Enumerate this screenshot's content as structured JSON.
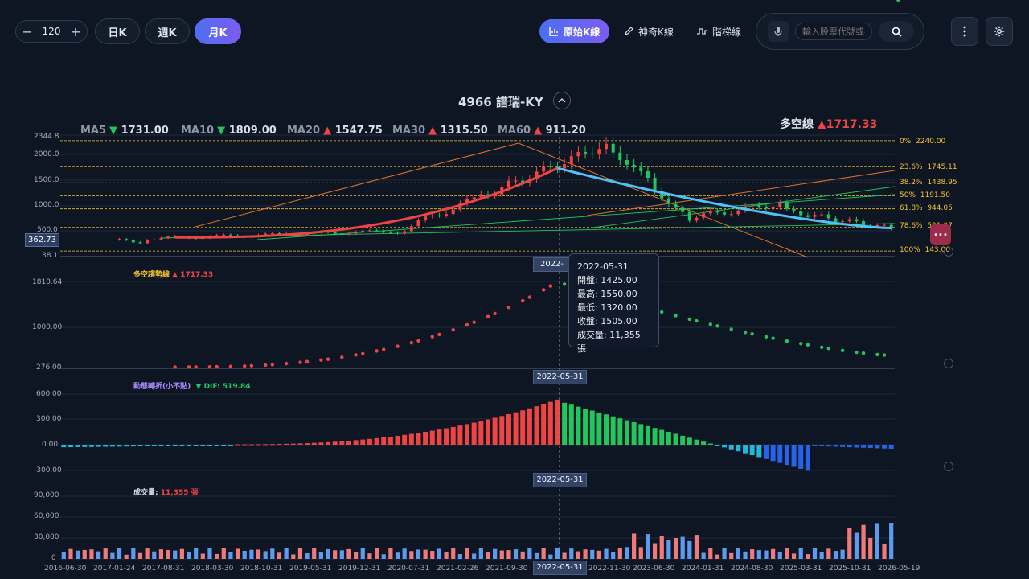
{
  "toolbar": {
    "period_count": "120",
    "minus": "−",
    "plus": "+",
    "periods": [
      "日K",
      "週K",
      "月K"
    ],
    "active_period": "月K",
    "modes": [
      "原始K線",
      "神奇K線",
      "階梯線"
    ],
    "active_mode": "原始K線",
    "search_placeholder": "輸入股票代號或名稱"
  },
  "stock": {
    "title": "4966 譜瑞-KY"
  },
  "ma_legend": [
    {
      "label": "MA5",
      "dir": "down",
      "value": "1731.00"
    },
    {
      "label": "MA10",
      "dir": "down",
      "value": "1809.00"
    },
    {
      "label": "MA20",
      "dir": "up",
      "value": "1547.75"
    },
    {
      "label": "MA30",
      "dir": "up",
      "value": "1315.50"
    },
    {
      "label": "MA60",
      "dir": "up",
      "value": "911.20"
    }
  ],
  "duokong": {
    "label": "多空線",
    "arrow": "▲",
    "value": "1717.33"
  },
  "price_axis": [
    "2344.8",
    "2000.0",
    "1500.0",
    "1000.0",
    "500.0",
    "38.1"
  ],
  "current_price_tag": "362.73",
  "fib_levels": [
    {
      "pct": "0%",
      "value": "2240.00"
    },
    {
      "pct": "23.6%",
      "value": "1745.11"
    },
    {
      "pct": "38.2%",
      "value": "1438.95"
    },
    {
      "pct": "50%",
      "value": "1191.50"
    },
    {
      "pct": "61.8%",
      "value": "944.05"
    },
    {
      "pct": "78.6%",
      "value": "591.07"
    },
    {
      "pct": "100%",
      "value": "143.00"
    }
  ],
  "trend_panel": {
    "label": "多空趨勢線",
    "arrow": "▲",
    "value": "1717.33",
    "axis": [
      "1810.64",
      "1000.00",
      "276.00"
    ]
  },
  "macd_panel": {
    "label": "動態轉折(小不點)",
    "arrow": "▼",
    "dif_label": "DIF:",
    "dif_value": "519.84",
    "axis": [
      "600.00",
      "300.00",
      "0.00",
      "-300.00"
    ]
  },
  "volume_panel": {
    "label": "成交量:",
    "value": "11,355",
    "unit": "張",
    "axis": [
      "90,000",
      "60,000",
      "30,000",
      "0"
    ]
  },
  "crosshair_date": "2022-05-31",
  "tooltip": {
    "date": "2022-05-31",
    "open_label": "開盤:",
    "open": "1425.00",
    "high_label": "最高:",
    "high": "1550.00",
    "low_label": "最低:",
    "low": "1320.00",
    "close_label": "收盤:",
    "close": "1505.00",
    "vol_label": "成交量:",
    "vol": "11,355 張"
  },
  "x_dates": [
    "2016-06-30",
    "2017-01-24",
    "2017-08-31",
    "2018-03-30",
    "2018-10-31",
    "2019-05-31",
    "2019-12-31",
    "2020-07-31",
    "2021-02-26",
    "2021-09-30",
    "2022-11-30",
    "2023-06-30",
    "2024-01-31",
    "2024-08-30",
    "2025-03-31",
    "2025-10-31",
    "2026-05-19"
  ],
  "chart_data": {
    "type": "candlestick",
    "interval": "monthly",
    "months": 120,
    "trend_line": {
      "name": "多空線",
      "x_start": "2017-08-31",
      "x_peak": "2022-05-31",
      "x_end": "2026-05-19",
      "y_start": 400,
      "y_peak": 1717.33,
      "y_end": 580
    },
    "crosshair": {
      "date": "2022-05-31",
      "open": 1425,
      "high": 1550,
      "low": 1320,
      "close": 1505,
      "volume": 11355
    }
  },
  "colors": {
    "up": "#ef4444",
    "down": "#22c55e",
    "ma_line": "#4fc3f7",
    "trend_up": "#ef4444",
    "fib": "#f2c230",
    "grid": "#1e2a3b"
  }
}
